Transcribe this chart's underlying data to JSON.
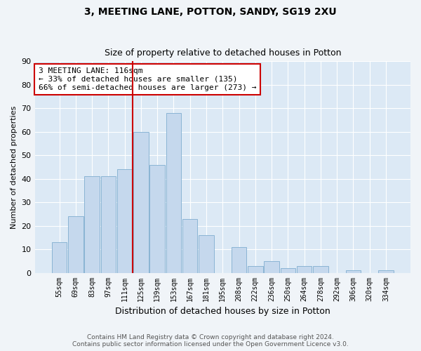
{
  "title1": "3, MEETING LANE, POTTON, SANDY, SG19 2XU",
  "title2": "Size of property relative to detached houses in Potton",
  "xlabel": "Distribution of detached houses by size in Potton",
  "ylabel": "Number of detached properties",
  "bar_labels": [
    "55sqm",
    "69sqm",
    "83sqm",
    "97sqm",
    "111sqm",
    "125sqm",
    "139sqm",
    "153sqm",
    "167sqm",
    "181sqm",
    "195sqm",
    "208sqm",
    "222sqm",
    "236sqm",
    "250sqm",
    "264sqm",
    "278sqm",
    "292sqm",
    "306sqm",
    "320sqm",
    "334sqm"
  ],
  "bar_heights": [
    13,
    24,
    41,
    41,
    44,
    60,
    46,
    68,
    23,
    16,
    0,
    11,
    3,
    5,
    2,
    3,
    3,
    0,
    1,
    0,
    1
  ],
  "bar_color": "#c5d8ed",
  "bar_edgecolor": "#8ab4d4",
  "vline_color": "#cc0000",
  "annotation_text": "3 MEETING LANE: 116sqm\n← 33% of detached houses are smaller (135)\n66% of semi-detached houses are larger (273) →",
  "annotation_box_edgecolor": "#cc0000",
  "ylim": [
    0,
    90
  ],
  "yticks": [
    0,
    10,
    20,
    30,
    40,
    50,
    60,
    70,
    80,
    90
  ],
  "footer1": "Contains HM Land Registry data © Crown copyright and database right 2024.",
  "footer2": "Contains public sector information licensed under the Open Government Licence v3.0.",
  "fig_bg_color": "#f0f4f8",
  "plot_bg_color": "#dce9f5"
}
